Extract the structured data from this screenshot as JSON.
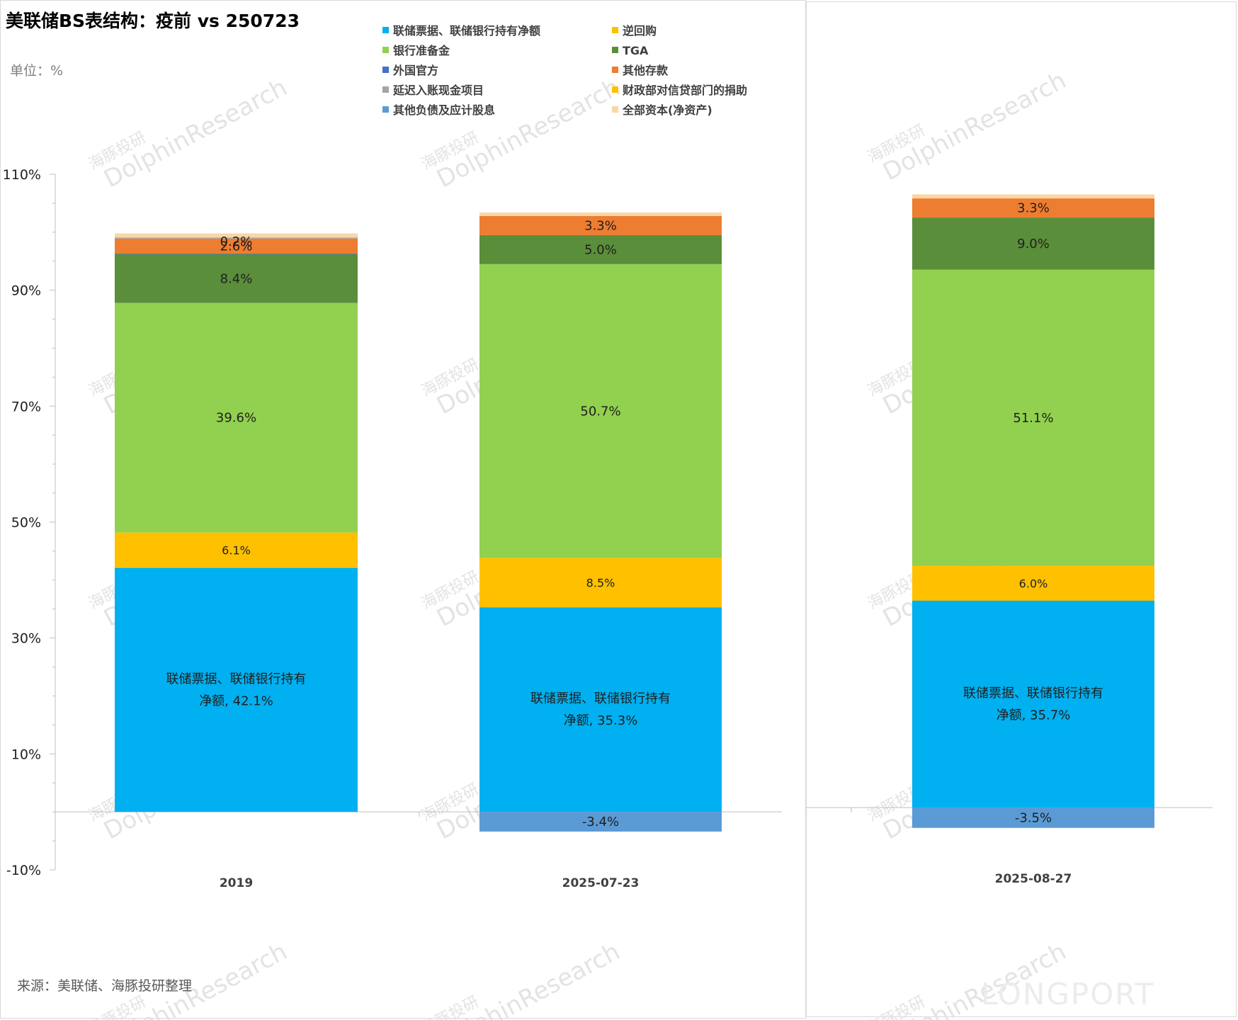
{
  "title": "美联储BS表结构：疫前 vs 250723",
  "unit_label": "单位：%",
  "source": "来源：美联储、海豚投研整理",
  "watermark": {
    "cn": "海豚投研",
    "en": "DolphinResearch",
    "brand": "LONGPORT"
  },
  "colors": {
    "background": "#ffffff",
    "axis": "#bfbfbf",
    "text": "#1f1f1f",
    "muted": "#7f7f7f"
  },
  "chart_data": [
    {
      "type": "bar",
      "stacked": true,
      "categories": [
        "2019",
        "2025-07-23"
      ],
      "ylim": [
        -10,
        110
      ],
      "yticks": [
        -10,
        10,
        30,
        50,
        70,
        90,
        110
      ],
      "ytick_labels": [
        "-10%",
        "10%",
        "30%",
        "50%",
        "70%",
        "90%",
        "110%"
      ],
      "grid": false,
      "legend_position": "top",
      "series": [
        {
          "name": "联储票据、联储银行持有净额",
          "color": "#00b0f0",
          "values": [
            42.1,
            35.3
          ],
          "labels": [
            "联储票据、联储银行持有\n净额, 42.1%",
            "联储票据、联储银行持有\n净额, 35.3%"
          ]
        },
        {
          "name": "逆回购",
          "color": "#ffc000",
          "values": [
            6.1,
            8.5
          ],
          "labels": [
            "6.1%",
            "8.5%"
          ]
        },
        {
          "name": "银行准备金",
          "color": "#92d050",
          "values": [
            39.6,
            50.7
          ],
          "labels": [
            "39.6%",
            "50.7%"
          ]
        },
        {
          "name": "TGA",
          "color": "#5a8e3a",
          "values": [
            8.4,
            5.0
          ],
          "labels": [
            "8.4%",
            "5.0%"
          ]
        },
        {
          "name": "外国官方",
          "color": "#4472c4",
          "values": [
            0.1,
            0.0
          ],
          "labels": [
            "",
            ""
          ]
        },
        {
          "name": "其他存款",
          "color": "#ed7d31",
          "values": [
            2.6,
            3.3
          ],
          "labels": [
            "2.6%",
            "3.3%"
          ]
        },
        {
          "name": "延迟入账现金项目",
          "color": "#a5a5a5",
          "values": [
            0.2,
            0.0
          ],
          "labels": [
            "0.2%",
            ""
          ]
        },
        {
          "name": "财政部对信贷部门的捐助",
          "color": "#ffc000",
          "values": [
            0.0,
            0.0
          ],
          "labels": [
            "",
            ""
          ]
        },
        {
          "name": "其他负债及应计股息",
          "color": "#5b9bd5",
          "values": [
            0.0,
            -3.4
          ],
          "labels": [
            "",
            "-3.4%"
          ]
        },
        {
          "name": "全部资本(净资产)",
          "color": "#f8d7a5",
          "values": [
            0.7,
            0.6
          ],
          "labels": [
            "",
            ""
          ]
        }
      ]
    },
    {
      "type": "bar",
      "stacked": true,
      "categories": [
        "2025-08-27"
      ],
      "ylim": [
        -10,
        110
      ],
      "series": [
        {
          "name": "联储票据、联储银行持有净额",
          "color": "#00b0f0",
          "values": [
            35.7
          ],
          "labels": [
            "联储票据、联储银行持有\n净额, 35.7%"
          ]
        },
        {
          "name": "逆回购",
          "color": "#ffc000",
          "values": [
            6.0
          ],
          "labels": [
            "6.0%"
          ]
        },
        {
          "name": "银行准备金",
          "color": "#92d050",
          "values": [
            51.1
          ],
          "labels": [
            "51.1%"
          ]
        },
        {
          "name": "TGA",
          "color": "#5a8e3a",
          "values": [
            9.0
          ],
          "labels": [
            "9.0%"
          ]
        },
        {
          "name": "其他存款",
          "color": "#ed7d31",
          "values": [
            3.3
          ],
          "labels": [
            "3.3%"
          ]
        },
        {
          "name": "其他负债及应计股息",
          "color": "#5b9bd5",
          "values": [
            -3.5
          ],
          "labels": [
            "-3.5%"
          ]
        },
        {
          "name": "全部资本(净资产)",
          "color": "#f8d7a5",
          "values": [
            0.7
          ],
          "labels": [
            ""
          ]
        }
      ]
    }
  ]
}
